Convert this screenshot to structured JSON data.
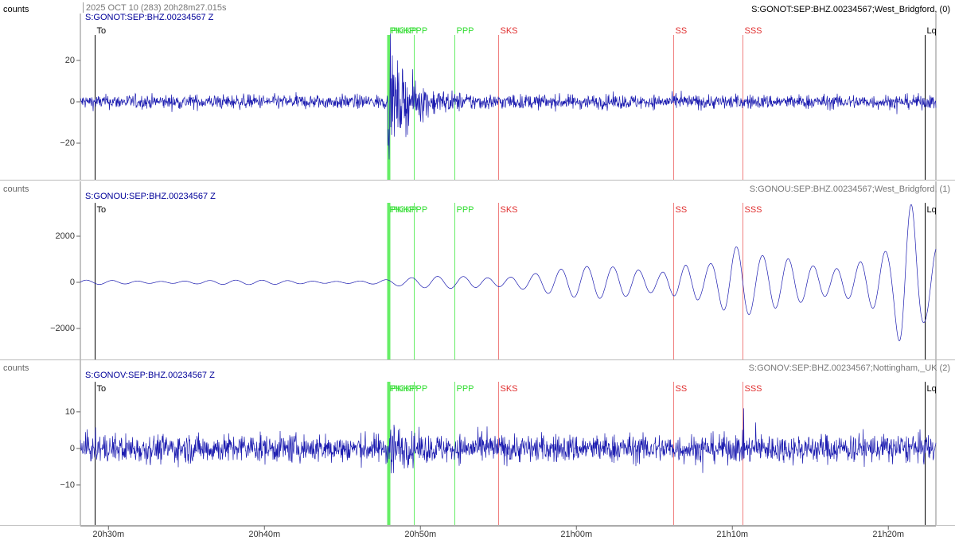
{
  "header": {
    "date": "2025 OCT 10 (283)  20h28m27.015s"
  },
  "time_axis": {
    "xlim": [
      28.2,
      83.05
    ],
    "xticks": [
      {
        "value": 30,
        "label": "20h30m"
      },
      {
        "value": 40,
        "label": "20h40m"
      },
      {
        "value": 50,
        "label": "20h50m"
      },
      {
        "value": 60,
        "label": "21h00m"
      },
      {
        "value": 70,
        "label": "21h10m"
      },
      {
        "value": 80,
        "label": "21h20m"
      }
    ]
  },
  "phases": [
    {
      "name": "To",
      "time": 29.13,
      "color": "#000000"
    },
    {
      "name": "PKiKP",
      "time": 47.9,
      "color": "#33dd33"
    },
    {
      "name": "PKIKP",
      "time": 48.02,
      "color": "#33dd33"
    },
    {
      "name": "PP",
      "time": 49.59,
      "color": "#33dd33"
    },
    {
      "name": "PPP",
      "time": 52.19,
      "color": "#33dd33"
    },
    {
      "name": "SKS",
      "time": 55.0,
      "color": "#e03030"
    },
    {
      "name": "SS",
      "time": 66.2,
      "color": "#e03030"
    },
    {
      "name": "SSS",
      "time": 70.65,
      "color": "#e03030"
    },
    {
      "name": "Lq",
      "time": 82.33,
      "color": "#000000"
    }
  ],
  "traces": [
    {
      "y_label": "counts",
      "label_left": "S:GONOT:SEP:BHZ.00234567 Z",
      "label_right": "S:GONOT:SEP:BHZ.00234567;West_Bridgford, (0)",
      "ylim": [
        -37.7,
        42.7
      ],
      "yticks": [
        {
          "value": 20,
          "label": "20"
        },
        0,
        {
          "value": -20,
          "label": "−20"
        }
      ]
    },
    {
      "y_label": "counts",
      "label_left": "S:GONOU:SEP:BHZ.00234567 Z",
      "label_right": "S:GONOU:SEP:BHZ.00234567;West_Bridgford, (1)",
      "ylim": [
        -3345,
        4379
      ],
      "yticks": [
        2000,
        0,
        {
          "value": -2000,
          "label": "−2000"
        }
      ]
    },
    {
      "y_label": "counts",
      "label_left": "S:GONOV:SEP:BHZ.00234567 Z",
      "label_right": "S:GONOV:SEP:BHZ.00234567;Nottingham,_UK (2)",
      "ylim": [
        -20.9,
        24.1
      ],
      "yticks": [
        10,
        0,
        {
          "value": -10,
          "label": "−10"
        }
      ]
    }
  ]
}
